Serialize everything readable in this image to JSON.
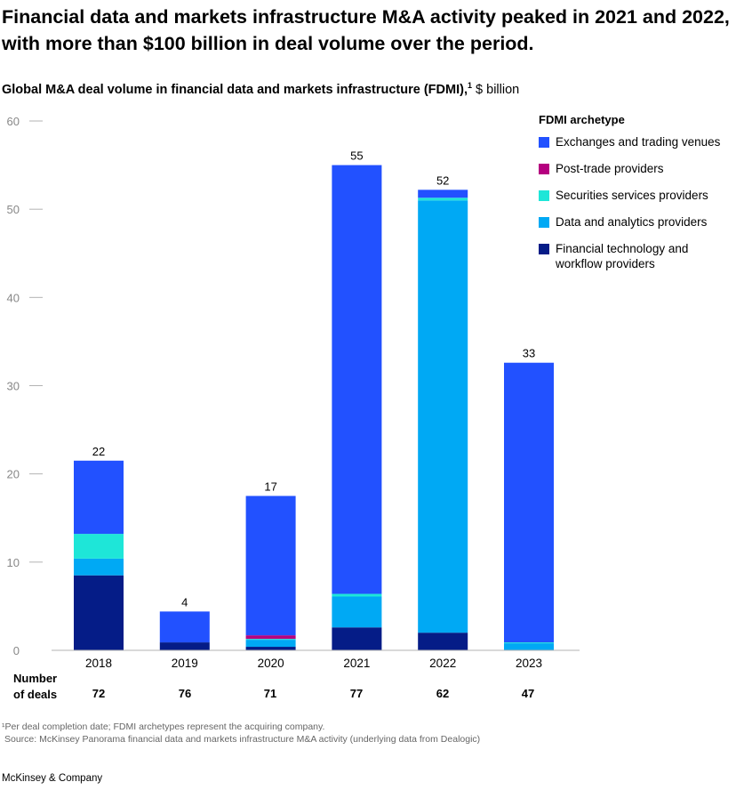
{
  "headline": "Financial data and markets infrastructure M&A activity peaked in 2021 and 2022, with more than $100 billion in deal volume over the period.",
  "subtitle": {
    "main": "Global M&A deal volume in financial data and markets infrastructure (FDMI),",
    "footnote_marker": "1",
    "unit": "$ billion"
  },
  "legend": {
    "title": "FDMI archetype",
    "items": [
      {
        "label": "Exchanges and trading venues"
      },
      {
        "label": "Post-trade providers"
      },
      {
        "label": "Securities services providers"
      },
      {
        "label": "Data and analytics providers"
      },
      {
        "label": "Financial technology and workflow providers"
      }
    ]
  },
  "deals": {
    "label_line1": "Number",
    "label_line2": "of deals",
    "counts": [
      "72",
      "76",
      "71",
      "77",
      "62",
      "47"
    ]
  },
  "footnote": "¹Per deal completion date; FDMI archetypes represent the acquiring company.",
  "source": "Source: McKinsey Panorama financial data and markets infrastructure M&A activity (underlying data from Dealogic)",
  "brand": "McKinsey & Company",
  "chart_data": {
    "type": "bar",
    "stacked": true,
    "categories": [
      "2018",
      "2019",
      "2020",
      "2021",
      "2022",
      "2023"
    ],
    "totals": [
      "22",
      "4",
      "17",
      "55",
      "52",
      "33"
    ],
    "series": [
      {
        "name": "Financial technology and workflow providers",
        "color": "#051c87",
        "values": [
          8.5,
          0.9,
          0.4,
          2.6,
          2.0,
          0.0
        ]
      },
      {
        "name": "Data and analytics providers",
        "color": "#00a9f4",
        "values": [
          1.9,
          0.0,
          0.8,
          3.5,
          49.0,
          0.8
        ]
      },
      {
        "name": "Securities services providers",
        "color": "#1ee6d8",
        "values": [
          2.8,
          0.0,
          0.1,
          0.3,
          0.3,
          0.1
        ]
      },
      {
        "name": "Post-trade providers",
        "color": "#b5007f",
        "values": [
          0.0,
          0.0,
          0.4,
          0.0,
          0.0,
          0.0
        ]
      },
      {
        "name": "Exchanges and trading venues",
        "color": "#2251ff",
        "values": [
          8.3,
          3.5,
          15.8,
          48.6,
          0.9,
          31.7
        ]
      }
    ],
    "ylim": [
      0,
      60
    ],
    "yticks": [
      "0",
      "10",
      "20",
      "30",
      "40",
      "50",
      "60"
    ],
    "grid": false,
    "legend_position": "top-right"
  }
}
